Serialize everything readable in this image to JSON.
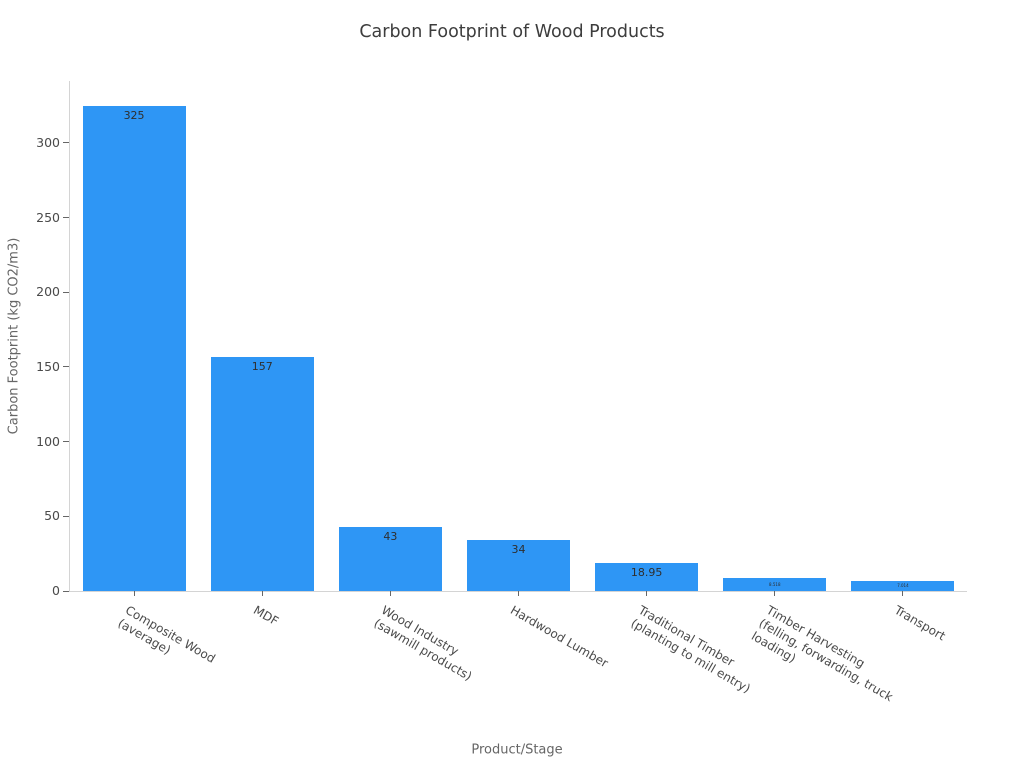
{
  "chart_data": {
    "type": "bar",
    "title": "Carbon Footprint of Wood Products",
    "xlabel": "Product/Stage",
    "ylabel": "Carbon Footprint (kg CO2/m3)",
    "categories": [
      "Composite Wood\n(average)",
      "MDF",
      "Wood Industry\n(sawmill products)",
      "Hardwood Lumber",
      "Traditional Timber\n(planting to mill entry)",
      "Timber Harvesting\n(felling, forwarding, truck loading)",
      "Transport"
    ],
    "values": [
      325,
      157,
      43,
      34,
      18.95,
      8.518,
      7.014
    ],
    "value_labels": [
      "325",
      "157",
      "43",
      "34",
      "18.95",
      "8.518",
      "7.014"
    ],
    "y_ticks": [
      0,
      50,
      100,
      150,
      200,
      250,
      300
    ],
    "ylim": [
      0,
      341.5
    ],
    "xtick_angle_deg": 30,
    "grid": false,
    "legend": "none",
    "bar_color": "#2E96F5",
    "title_color": "#3d3d3d",
    "tick_label_color": "#4a4a4a",
    "axis_title_color": "#666666",
    "axis_line_color": "#d4d4d4",
    "value_label_color": "#2e2e2e"
  }
}
